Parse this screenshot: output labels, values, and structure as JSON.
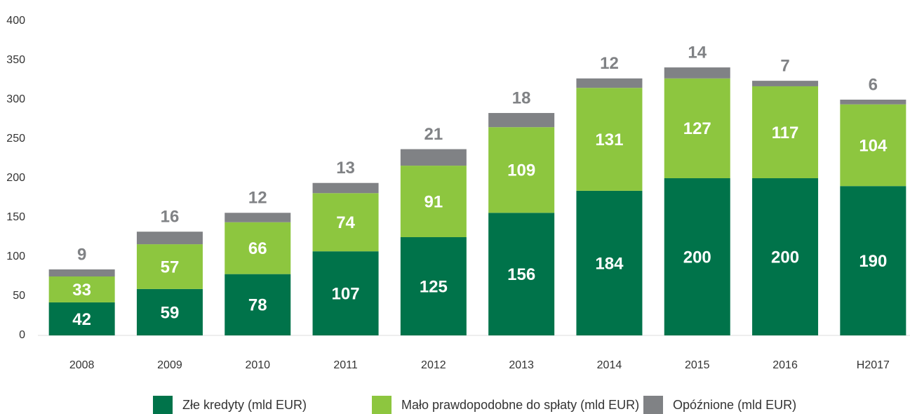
{
  "chart_data": {
    "type": "bar",
    "stacked": true,
    "categories": [
      "2008",
      "2009",
      "2010",
      "2011",
      "2012",
      "2013",
      "2014",
      "2015",
      "2016",
      "H2017"
    ],
    "series": [
      {
        "name": "Złe kredyty (mld EUR)",
        "color": "#00734a",
        "values": [
          42,
          59,
          78,
          107,
          125,
          156,
          184,
          200,
          200,
          190
        ]
      },
      {
        "name": "Mało prawdopodobne do spłaty (mld EUR)",
        "color": "#8dc63f",
        "values": [
          33,
          57,
          66,
          74,
          91,
          109,
          131,
          127,
          117,
          104
        ]
      },
      {
        "name": "Opóźnione (mld EUR)",
        "color": "#808285",
        "values": [
          9,
          16,
          12,
          13,
          21,
          18,
          12,
          14,
          7,
          6
        ]
      }
    ],
    "ylim": [
      0,
      400
    ],
    "yticks": [
      0,
      50,
      100,
      150,
      200,
      250,
      300,
      350,
      400
    ],
    "legend": "bottom"
  }
}
